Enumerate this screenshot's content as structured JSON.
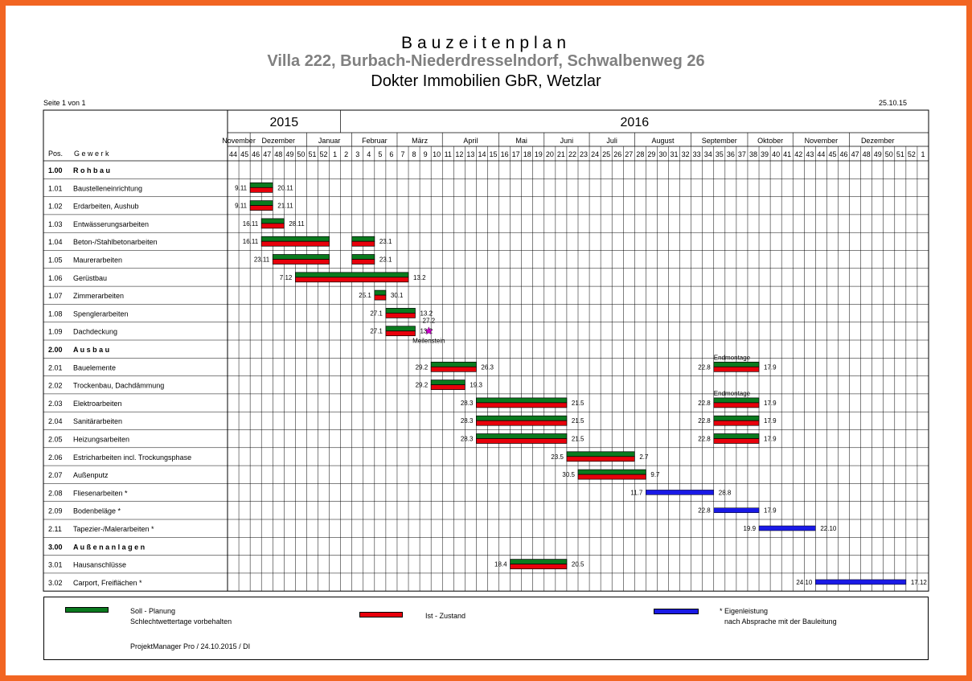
{
  "header": {
    "title": "Bauzeitenplan",
    "subtitle": "Villa 222, Burbach-Niederdresselndorf, Schwalbenweg 26",
    "company": "Dokter Immobilien GbR, Wetzlar",
    "page": "Seite 1 von 1",
    "date": "25.10.15"
  },
  "colors": {
    "soll": "#0a7a1e",
    "ist": "#e8000b",
    "eigen": "#1a1ae6",
    "frame": "#f26522",
    "milestone": "#cc00cc"
  },
  "columns": {
    "pos": "Pos.",
    "gewerk": "G e w e r k"
  },
  "years": [
    "2015",
    "2016"
  ],
  "months": [
    "November",
    "Dezember",
    "Januar",
    "Februar",
    "März",
    "April",
    "Mai",
    "Juni",
    "Juli",
    "August",
    "September",
    "Oktober",
    "November",
    "Dezember"
  ],
  "weeks": [
    "44",
    "45",
    "46",
    "47",
    "48",
    "49",
    "50",
    "51",
    "52",
    "1",
    "2",
    "3",
    "4",
    "5",
    "6",
    "7",
    "8",
    "9",
    "10",
    "11",
    "12",
    "13",
    "14",
    "15",
    "16",
    "17",
    "18",
    "19",
    "20",
    "21",
    "22",
    "23",
    "24",
    "25",
    "26",
    "27",
    "28",
    "29",
    "30",
    "31",
    "32",
    "33",
    "34",
    "35",
    "36",
    "37",
    "38",
    "39",
    "40",
    "41",
    "42",
    "43",
    "44",
    "45",
    "46",
    "47",
    "48",
    "49",
    "50",
    "51",
    "52",
    "1"
  ],
  "rows": [
    {
      "pos": "1.00",
      "name": "R o h b a u",
      "section": true
    },
    {
      "pos": "1.01",
      "name": "Baustelleneinrichtung"
    },
    {
      "pos": "1.02",
      "name": "Erdarbeiten, Aushub"
    },
    {
      "pos": "1.03",
      "name": "Entwässerungsarbeiten"
    },
    {
      "pos": "1.04",
      "name": "Beton-/Stahlbetonarbeiten"
    },
    {
      "pos": "1.05",
      "name": "Maurerarbeiten"
    },
    {
      "pos": "1.06",
      "name": "Gerüstbau"
    },
    {
      "pos": "1.07",
      "name": "Zimmerarbeiten"
    },
    {
      "pos": "1.08",
      "name": "Spenglerarbeiten"
    },
    {
      "pos": "1.09",
      "name": "Dachdeckung"
    },
    {
      "pos": "2.00",
      "name": "A u s b a u",
      "section": true
    },
    {
      "pos": "2.01",
      "name": "Bauelemente"
    },
    {
      "pos": "2.02",
      "name": "Trockenbau, Dachdämmung"
    },
    {
      "pos": "2.03",
      "name": "Elektroarbeiten"
    },
    {
      "pos": "2.04",
      "name": "Sanitärarbeiten"
    },
    {
      "pos": "2.05",
      "name": "Heizungsarbeiten"
    },
    {
      "pos": "2.06",
      "name": "Estricharbeiten incl. Trockungsphase"
    },
    {
      "pos": "2.07",
      "name": "Außenputz"
    },
    {
      "pos": "2.08",
      "name": "Fliesenarbeiten *"
    },
    {
      "pos": "2.09",
      "name": "Bodenbeläge *"
    },
    {
      "pos": "2.11",
      "name": "Tapezier-/Malerarbeiten *"
    },
    {
      "pos": "3.00",
      "name": "A u ß e n a n l a g e n",
      "section": true
    },
    {
      "pos": "3.01",
      "name": "Hausanschlüsse"
    },
    {
      "pos": "3.02",
      "name": "Carport, Freiflächen *"
    }
  ],
  "bars": [
    {
      "row": 1,
      "type": "soll_ist",
      "start_week": 2,
      "end_week": 4,
      "start_label": "9.11",
      "end_label": "20.11"
    },
    {
      "row": 2,
      "type": "soll_ist",
      "start_week": 2,
      "end_week": 4,
      "start_label": "9.11",
      "end_label": "21.11"
    },
    {
      "row": 3,
      "type": "soll_ist",
      "start_week": 3,
      "end_week": 5,
      "start_label": "16.11",
      "end_label": "28.11"
    },
    {
      "row": 4,
      "type": "soll_ist",
      "start_week": 3,
      "end_week": 9,
      "start_label": "16.11",
      "end_label": ""
    },
    {
      "row": 4,
      "type": "soll_ist",
      "start_week": 11,
      "end_week": 13,
      "start_label": "",
      "end_label": "23.1"
    },
    {
      "row": 5,
      "type": "soll_ist",
      "start_week": 4,
      "end_week": 9,
      "start_label": "23.11",
      "end_label": ""
    },
    {
      "row": 5,
      "type": "soll_ist",
      "start_week": 11,
      "end_week": 13,
      "start_label": "",
      "end_label": "23.1"
    },
    {
      "row": 6,
      "type": "soll_ist",
      "start_week": 6,
      "end_week": 16,
      "start_label": "7.12",
      "end_label": "13.2"
    },
    {
      "row": 7,
      "type": "soll_ist",
      "start_week": 13,
      "end_week": 14,
      "start_label": "25.1",
      "end_label": "30.1"
    },
    {
      "row": 8,
      "type": "soll_ist",
      "start_week": 14,
      "end_week": 16.6,
      "start_label": "27.1",
      "end_label": "13.2"
    },
    {
      "row": 9,
      "type": "soll_ist",
      "start_week": 14,
      "end_week": 16.6,
      "start_label": "27.1",
      "end_label": "13.2"
    },
    {
      "row": 11,
      "type": "soll_ist",
      "start_week": 18,
      "end_week": 22,
      "start_label": "29.2",
      "end_label": "26.3"
    },
    {
      "row": 11,
      "type": "soll_ist",
      "start_week": 43,
      "end_week": 47,
      "start_label": "22.8",
      "end_label": "17.9"
    },
    {
      "row": 12,
      "type": "soll_ist",
      "start_week": 18,
      "end_week": 21,
      "start_label": "29.2",
      "end_label": "19.3"
    },
    {
      "row": 13,
      "type": "soll_ist",
      "start_week": 22,
      "end_week": 30,
      "start_label": "28.3",
      "end_label": "21.5"
    },
    {
      "row": 13,
      "type": "soll_ist",
      "start_week": 43,
      "end_week": 47,
      "start_label": "22.8",
      "end_label": "17.9"
    },
    {
      "row": 14,
      "type": "soll_ist",
      "start_week": 22,
      "end_week": 30,
      "start_label": "28.3",
      "end_label": "21.5"
    },
    {
      "row": 14,
      "type": "soll_ist",
      "start_week": 43,
      "end_week": 47,
      "start_label": "22.8",
      "end_label": "17.9"
    },
    {
      "row": 15,
      "type": "soll_ist",
      "start_week": 22,
      "end_week": 30,
      "start_label": "28.3",
      "end_label": "21.5"
    },
    {
      "row": 15,
      "type": "soll_ist",
      "start_week": 43,
      "end_week": 47,
      "start_label": "22.8",
      "end_label": "17.9"
    },
    {
      "row": 16,
      "type": "soll_ist",
      "start_week": 30,
      "end_week": 36,
      "start_label": "23.5",
      "end_label": "2.7"
    },
    {
      "row": 17,
      "type": "soll_ist",
      "start_week": 31,
      "end_week": 37,
      "start_label": "30.5",
      "end_label": "9.7"
    },
    {
      "row": 18,
      "type": "eigen",
      "start_week": 37,
      "end_week": 43,
      "start_label": "11.7",
      "end_label": "28.8"
    },
    {
      "row": 19,
      "type": "eigen",
      "start_week": 43,
      "end_week": 47,
      "start_label": "22.8",
      "end_label": "17.9"
    },
    {
      "row": 20,
      "type": "eigen",
      "start_week": 47,
      "end_week": 52,
      "start_label": "19.9",
      "end_label": "22.10"
    },
    {
      "row": 22,
      "type": "soll_ist",
      "start_week": 25,
      "end_week": 30,
      "start_label": "18.4",
      "end_label": "20.5"
    },
    {
      "row": 23,
      "type": "eigen",
      "start_week": 52,
      "end_week": 60,
      "start_label": "24.10",
      "end_label": "17.12"
    }
  ],
  "annotations": [
    {
      "row": 9,
      "week": 17.8,
      "kind": "milestone",
      "top_text": "27.2",
      "bottom_text": "Meilenstein"
    },
    {
      "row": 11,
      "week": 43,
      "kind": "note",
      "text": "Endmontage"
    },
    {
      "row": 13,
      "week": 43,
      "kind": "note",
      "text": "Endmontage"
    }
  ],
  "legend": {
    "soll_title": "Soll - Planung",
    "soll_note": "Schlechtwettertage vorbehalten",
    "ist_title": "Ist - Zustand",
    "eigen_title": "* Eigenleistung",
    "eigen_note": "nach Absprache mit der Bauleitung",
    "footer": "ProjektManager Pro / 24.10.2015 / DI"
  }
}
